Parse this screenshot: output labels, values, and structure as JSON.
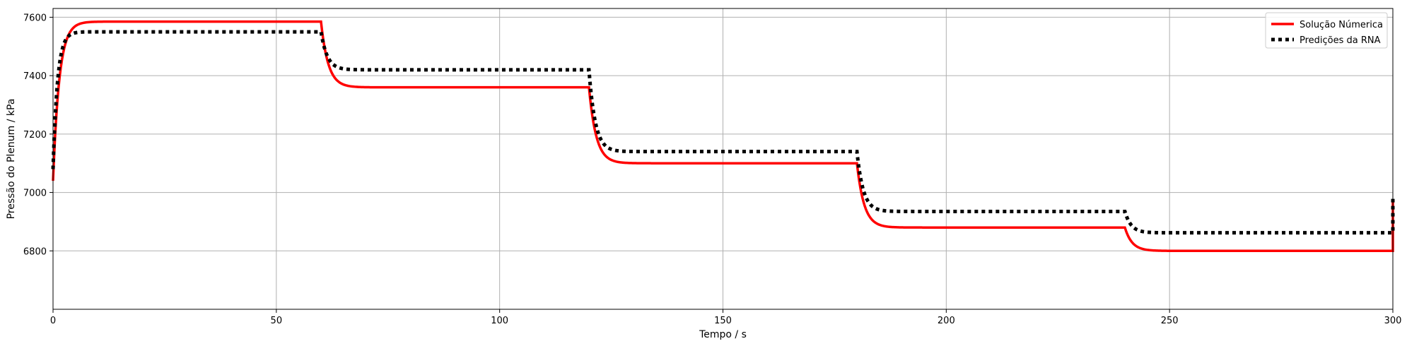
{
  "chart_data": {
    "type": "line",
    "title": "",
    "xlabel": "Tempo / s",
    "ylabel": "Pressão do Plenum / kPa",
    "xlim": [
      0,
      300
    ],
    "ylim": [
      6600,
      7630
    ],
    "xticks": [
      0,
      50,
      100,
      150,
      200,
      250,
      300
    ],
    "yticks": [
      6800,
      7000,
      7200,
      7400,
      7600
    ],
    "grid": true,
    "legend_position": "top-right",
    "series": [
      {
        "name": "Solução Númerica",
        "color": "#ff0000",
        "style": "solid",
        "steps": [
          {
            "t0": 0,
            "t1": 60,
            "from": 7040,
            "to": 7585,
            "tau": 1.4
          },
          {
            "t0": 60,
            "t1": 120,
            "from": 7585,
            "to": 7360,
            "tau": 1.6
          },
          {
            "t0": 120,
            "t1": 180,
            "from": 7360,
            "to": 7100,
            "tau": 1.6
          },
          {
            "t0": 180,
            "t1": 240,
            "from": 7100,
            "to": 6880,
            "tau": 1.6
          },
          {
            "t0": 240,
            "t1": 300,
            "from": 6880,
            "to": 6800,
            "tau": 1.6
          }
        ],
        "end_jump": 6970
      },
      {
        "name": "Predições da RNA",
        "color": "#000000",
        "style": "dotted",
        "steps": [
          {
            "t0": 0,
            "t1": 60,
            "from": 7080,
            "to": 7550,
            "tau": 1.0
          },
          {
            "t0": 60,
            "t1": 120,
            "from": 7550,
            "to": 7420,
            "tau": 1.4
          },
          {
            "t0": 120,
            "t1": 180,
            "from": 7420,
            "to": 7140,
            "tau": 1.4
          },
          {
            "t0": 180,
            "t1": 240,
            "from": 7140,
            "to": 6935,
            "tau": 1.4
          },
          {
            "t0": 240,
            "t1": 300,
            "from": 6935,
            "to": 6862,
            "tau": 1.4
          }
        ],
        "end_jump": 6985
      }
    ]
  }
}
